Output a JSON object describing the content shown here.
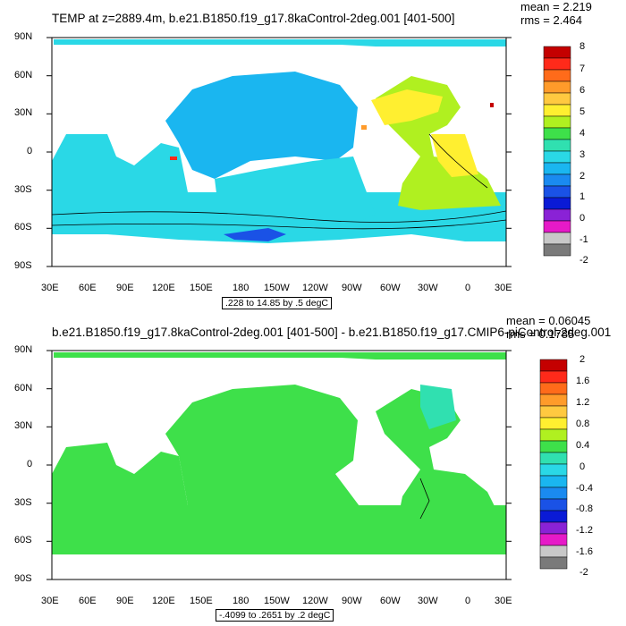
{
  "panel1": {
    "title": "TEMP at z=2889.4m, b.e21.B1850.f19_g17.8kaControl-2deg.001 [401-500]",
    "mean": "mean = 2.219",
    "rms": "rms = 2.464",
    "contour_info": ".228 to 14.85 by .5 degC",
    "colorbar_labels": [
      "8",
      "7",
      "6",
      "5",
      "4",
      "3",
      "2",
      "1",
      "0",
      "-1",
      "-2"
    ],
    "colorbar_colors": [
      "#c40000",
      "#ff2a1a",
      "#ff6b1a",
      "#ff9b2a",
      "#ffc940",
      "#ffef30",
      "#b0f020",
      "#3ee04a",
      "#30e0b0",
      "#2ad8e6",
      "#1ab6f0",
      "#1a8af0",
      "#1a52e6",
      "#0a1ad6",
      "#8a22d6",
      "#e61ac8",
      "#c8c8c8",
      "#7a7a7a"
    ]
  },
  "panel2": {
    "title": "b.e21.B1850.f19_g17.8kaControl-2deg.001 [401-500] - b.e21.B1850.f19_g17.CMIP6-piControl-2deg.001",
    "mean": "mean = 0.06045",
    "rms": "rms = 0.1785",
    "contour_info": "-.4099 to .2651 by .2 degC",
    "colorbar_labels": [
      "2",
      "1.6",
      "1.2",
      "0.8",
      "0.4",
      "0",
      "-0.4",
      "-0.8",
      "-1.2",
      "-1.6",
      "-2"
    ],
    "colorbar_colors": [
      "#c40000",
      "#ff2a1a",
      "#ff6b1a",
      "#ff9b2a",
      "#ffc940",
      "#ffef30",
      "#b0f020",
      "#3ee04a",
      "#30e0b0",
      "#2ad8e6",
      "#1ab6f0",
      "#1a8af0",
      "#1a52e6",
      "#0a1ad6",
      "#8a22d6",
      "#e61ac8",
      "#c8c8c8",
      "#7a7a7a"
    ]
  },
  "axes": {
    "lat_labels": [
      "90N",
      "60N",
      "30N",
      "0",
      "30S",
      "60S",
      "90S"
    ],
    "lon_labels": [
      "30E",
      "60E",
      "90E",
      "120E",
      "150E",
      "180",
      "150W",
      "120W",
      "90W",
      "60W",
      "30W",
      "0",
      "30E"
    ]
  }
}
